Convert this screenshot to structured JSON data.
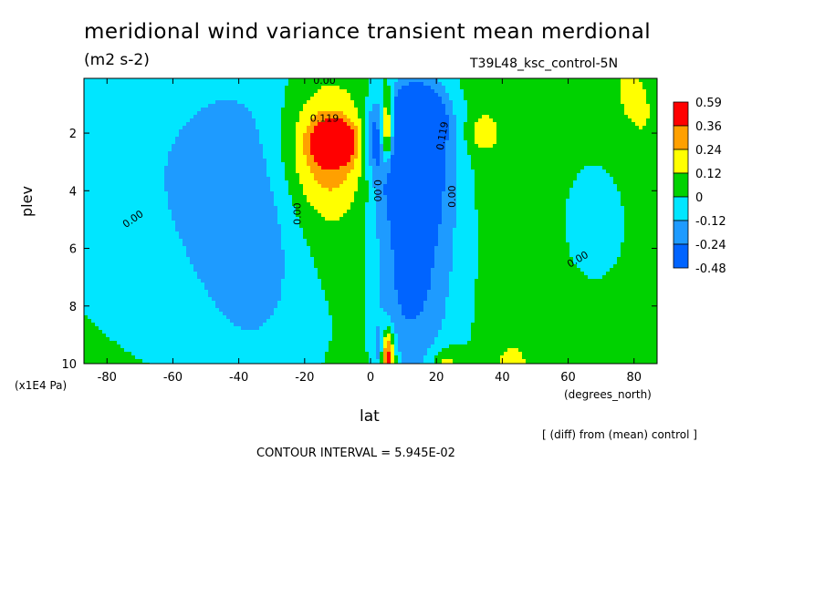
{
  "header": {
    "title": "meridional wind variance transient mean merdional",
    "units": "(m2 s-2)",
    "run": "T39L48_ksc_control-5N"
  },
  "footer": {
    "diff_note": "[ (diff) from (mean) control ]",
    "contour_interval": "CONTOUR INTERVAL = 5.945E-02"
  },
  "chart_data": {
    "type": "heatmap",
    "title": "meridional wind variance transient mean merdional",
    "xlabel": "lat",
    "xunit": "(degrees_north)",
    "ylabel": "plev",
    "yunit": "(x1E4 Pa)",
    "xlim": [
      -87,
      87
    ],
    "ylim": [
      0.1,
      10
    ],
    "y_inverted": true,
    "x_ticks": [
      -80,
      -60,
      -40,
      -20,
      0,
      20,
      40,
      60,
      80
    ],
    "y_ticks": [
      2,
      4,
      6,
      8,
      10
    ],
    "levels": [
      -0.48,
      -0.24,
      -0.12,
      0,
      0.12,
      0.24,
      0.36,
      0.59
    ],
    "colorbar_labels": [
      "0.59",
      "0.36",
      "0.24",
      "0.12",
      "0",
      "-0.12",
      "-0.24",
      "-0.48"
    ],
    "colors": {
      "bin_neg_048": "#0064ff",
      "bin_neg_024": "#1e9bff",
      "bin_neg_012": "#00e6ff",
      "bin_0": "#00d200",
      "bin_012": "#ffff00",
      "bin_024": "#ffa000",
      "bin_036": "#ff0000",
      "bin_059": "#ff0000"
    },
    "contour_labels": [
      {
        "text": "0.00",
        "lat": -72,
        "plev": 5.0,
        "rot": -35
      },
      {
        "text": "0.00",
        "lat": -22,
        "plev": 4.8,
        "rot": -90
      },
      {
        "text": "0.00",
        "lat": 2,
        "plev": 4.0,
        "rot": 90
      },
      {
        "text": "0.00",
        "lat": 25,
        "plev": 4.2,
        "rot": -90
      },
      {
        "text": "0.00",
        "lat": 63,
        "plev": 6.4,
        "rot": -30
      },
      {
        "text": "0.00",
        "lat": -14,
        "plev": 0.2,
        "rot": 0
      },
      {
        "text": "0.119",
        "lat": -14,
        "plev": 1.5,
        "rot": 0
      },
      {
        "text": "0.119",
        "lat": 22,
        "plev": 2.1,
        "rot": -80
      }
    ],
    "features": [
      {
        "lat": -11,
        "plev": 2.3,
        "value": 0.59,
        "sx": 4,
        "sy": 0.45
      },
      {
        "lat": -13,
        "plev": 2.6,
        "value": 0.24,
        "sx": 9,
        "sy": 1.4
      },
      {
        "lat": -14,
        "plev": 3.4,
        "value": 0.17,
        "sx": 11,
        "sy": 2.6
      },
      {
        "lat": 5,
        "plev": 1.9,
        "value": 0.62,
        "sx": 1.6,
        "sy": 0.9
      },
      {
        "lat": 2,
        "plev": 2.2,
        "value": -0.3,
        "sx": 2.4,
        "sy": 0.9
      },
      {
        "lat": 14,
        "plev": 1.5,
        "value": -0.55,
        "sx": 6,
        "sy": 0.8
      },
      {
        "lat": 12,
        "plev": 3.3,
        "value": -0.4,
        "sx": 5,
        "sy": 0.9
      },
      {
        "lat": 14,
        "plev": 3.8,
        "value": -0.23,
        "sx": 9,
        "sy": 2.4
      },
      {
        "lat": 13,
        "plev": 5.5,
        "value": -0.15,
        "sx": 10,
        "sy": 3.4
      },
      {
        "lat": 12,
        "plev": 8.5,
        "value": -0.13,
        "sx": 8,
        "sy": 1.8
      },
      {
        "lat": -48,
        "plev": 3.4,
        "value": -0.16,
        "sx": 30,
        "sy": 3.8
      },
      {
        "lat": -35,
        "plev": 6.2,
        "value": -0.14,
        "sx": 12,
        "sy": 3.2
      },
      {
        "lat": 70,
        "plev": 4.5,
        "value": -0.15,
        "sx": 9,
        "sy": 1.8
      },
      {
        "lat": 62,
        "plev": 1.2,
        "value": 0.07,
        "sx": 30,
        "sy": 3.5
      },
      {
        "lat": 34,
        "plev": 2.0,
        "value": 0.16,
        "sx": 3,
        "sy": 0.45
      },
      {
        "lat": 5,
        "plev": 9.8,
        "value": 0.6,
        "sx": 1.6,
        "sy": 0.7
      },
      {
        "lat": 23,
        "plev": 10.0,
        "value": 0.2,
        "sx": 3,
        "sy": 0.4
      },
      {
        "lat": 43,
        "plev": 10.0,
        "value": 0.2,
        "sx": 3,
        "sy": 0.4
      },
      {
        "lat": 3,
        "plev": 9.6,
        "value": -0.25,
        "sx": 1.5,
        "sy": 0.6
      },
      {
        "lat": -2,
        "plev": 8.0,
        "value": 0.06,
        "sx": 3,
        "sy": 2.0
      },
      {
        "lat": 80,
        "plev": 2.8,
        "value": 0.06,
        "sx": 8,
        "sy": 3.0
      }
    ]
  }
}
